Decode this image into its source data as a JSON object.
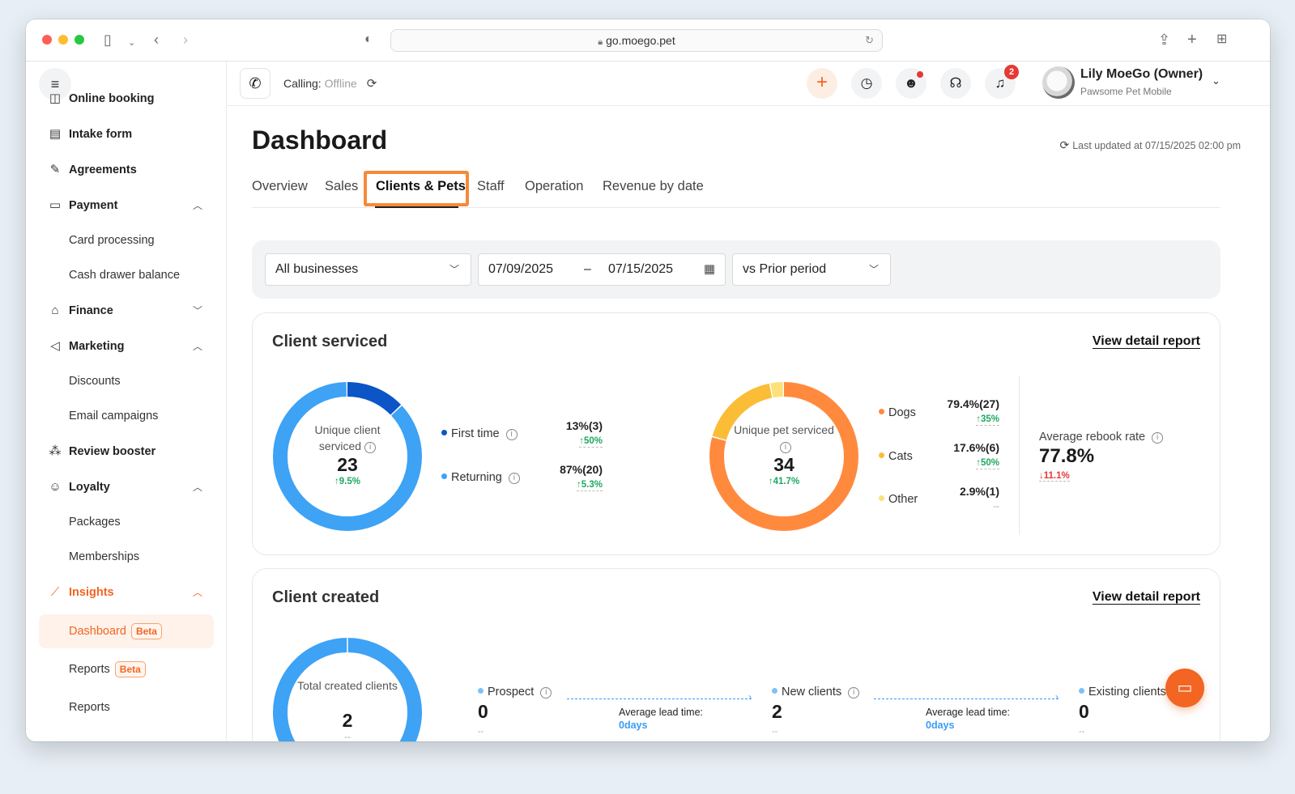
{
  "browser": {
    "url": "go.moego.pet"
  },
  "sidebar": {
    "items": [
      {
        "label": "Online booking"
      },
      {
        "label": "Intake form"
      },
      {
        "label": "Agreements"
      },
      {
        "label": "Payment"
      },
      {
        "label": "Card processing"
      },
      {
        "label": "Cash drawer balance"
      },
      {
        "label": "Finance"
      },
      {
        "label": "Marketing"
      },
      {
        "label": "Discounts"
      },
      {
        "label": "Email campaigns"
      },
      {
        "label": "Review booster"
      },
      {
        "label": "Loyalty"
      },
      {
        "label": "Packages"
      },
      {
        "label": "Memberships"
      },
      {
        "label": "Insights"
      },
      {
        "label": "Dashboard",
        "badge": "Beta"
      },
      {
        "label": "Reports",
        "badge": "Beta"
      },
      {
        "label": "Reports"
      }
    ]
  },
  "topbar": {
    "calling_label": "Calling:",
    "calling_status": "Offline",
    "notification_count": "2",
    "user_name": "Lily MoeGo (Owner)",
    "business_name": "Pawsome Pet Mobile"
  },
  "page": {
    "title": "Dashboard",
    "last_updated": "Last updated at 07/15/2025 02:00 pm",
    "tabs": [
      "Overview",
      "Sales",
      "Clients & Pets",
      "Staff",
      "Operation",
      "Revenue by date"
    ],
    "active_tab": "Clients & Pets"
  },
  "filters": {
    "business": "All businesses",
    "date_start": "07/09/2025",
    "date_sep": "–",
    "date_end": "07/15/2025",
    "compare": "vs Prior period"
  },
  "client_serviced": {
    "title": "Client serviced",
    "link": "View detail report",
    "client_donut": {
      "label": "Unique client serviced",
      "value": "23",
      "delta": "↑9.5%"
    },
    "client_legend": [
      {
        "name": "First time",
        "value": "13%(3)",
        "delta": "↑50%",
        "color": "#0b55c7"
      },
      {
        "name": "Returning",
        "value": "87%(20)",
        "delta": "↑5.3%",
        "color": "#3ea2f5"
      }
    ],
    "pet_donut": {
      "label": "Unique pet serviced",
      "value": "34",
      "delta": "↑41.7%"
    },
    "pet_legend": [
      {
        "name": "Dogs",
        "value": "79.4%(27)",
        "delta": "↑35%",
        "color": "#ff8a3d"
      },
      {
        "name": "Cats",
        "value": "17.6%(6)",
        "delta": "↑50%",
        "color": "#fbbd36"
      },
      {
        "name": "Other",
        "value": "2.9%(1)",
        "delta": "--",
        "color": "#fde07a"
      }
    ],
    "rebook": {
      "label": "Average rebook rate",
      "value": "77.8%",
      "delta": "↓11.1%"
    }
  },
  "client_created": {
    "title": "Client created",
    "link": "View detail report",
    "donut": {
      "label": "Total created clients",
      "value": "2",
      "delta": "--"
    },
    "funnel": [
      {
        "name": "Prospect",
        "value": "0",
        "sub": "--"
      },
      {
        "name": "New clients",
        "value": "2",
        "sub": "--"
      },
      {
        "name": "Existing clients",
        "value": "0",
        "sub": "--"
      }
    ],
    "lead_times": [
      {
        "label": "Average lead time:",
        "value": "0days"
      },
      {
        "label": "Average lead time:",
        "value": "0days"
      }
    ]
  },
  "chart_data": [
    {
      "type": "pie",
      "title": "Unique client serviced",
      "categories": [
        "First time",
        "Returning"
      ],
      "values": [
        3,
        20
      ],
      "colors": [
        "#0b55c7",
        "#3ea2f5"
      ]
    },
    {
      "type": "pie",
      "title": "Unique pet serviced",
      "categories": [
        "Dogs",
        "Cats",
        "Other"
      ],
      "values": [
        27,
        6,
        1
      ],
      "colors": [
        "#ff8a3d",
        "#fbbd36",
        "#fde07a"
      ]
    },
    {
      "type": "pie",
      "title": "Total created clients",
      "categories": [
        "Total created clients"
      ],
      "values": [
        2
      ],
      "colors": [
        "#3ea2f5"
      ]
    }
  ]
}
